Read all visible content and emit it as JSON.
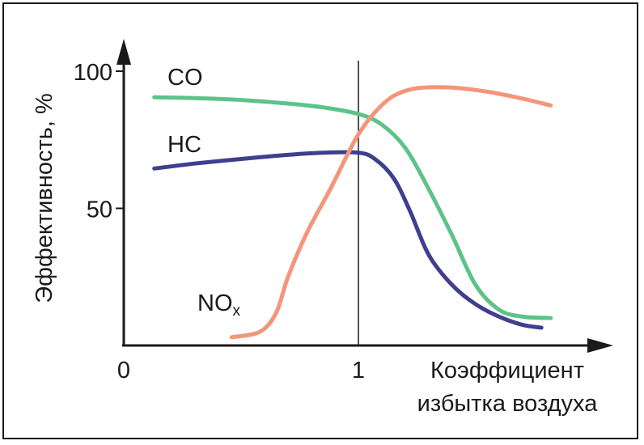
{
  "chart_data": {
    "type": "line",
    "title": "",
    "ylabel": "Эффективность, %",
    "xlabel_line1": "Коэффициент",
    "xlabel_line2": "избытка воздуха",
    "xlim": [
      0,
      2.05
    ],
    "ylim": [
      0,
      100
    ],
    "x_ticks": [
      {
        "value": 0,
        "label": "0"
      },
      {
        "value": 1,
        "label": "1"
      }
    ],
    "y_ticks": [
      {
        "value": 50,
        "label": "50"
      },
      {
        "value": 100,
        "label": "100"
      }
    ],
    "vertical_line_x": 1,
    "grid": false,
    "series": [
      {
        "name": "CO",
        "label_main": "CO",
        "label_sub": "",
        "color": "#5cc38a",
        "points": [
          [
            0.13,
            90.5
          ],
          [
            0.3,
            90.2
          ],
          [
            0.5,
            89.5
          ],
          [
            0.7,
            88.2
          ],
          [
            0.85,
            86.8
          ],
          [
            1.0,
            84.4
          ],
          [
            1.1,
            80.5
          ],
          [
            1.2,
            72
          ],
          [
            1.3,
            57
          ],
          [
            1.4,
            40
          ],
          [
            1.5,
            22
          ],
          [
            1.6,
            13
          ],
          [
            1.7,
            10.5
          ],
          [
            1.82,
            10
          ]
        ]
      },
      {
        "name": "HC",
        "label_main": "HC",
        "label_sub": "",
        "color": "#3f3f8f",
        "points": [
          [
            0.13,
            64.5
          ],
          [
            0.3,
            66.3
          ],
          [
            0.5,
            68
          ],
          [
            0.7,
            69.5
          ],
          [
            0.85,
            70.3
          ],
          [
            1.0,
            70.3
          ],
          [
            1.07,
            68
          ],
          [
            1.15,
            61
          ],
          [
            1.22,
            49
          ],
          [
            1.3,
            33
          ],
          [
            1.4,
            22
          ],
          [
            1.5,
            15
          ],
          [
            1.6,
            10.5
          ],
          [
            1.7,
            7.5
          ],
          [
            1.78,
            6.5
          ]
        ]
      },
      {
        "name": "NOx",
        "label_main": "NO",
        "label_sub": "x",
        "color": "#f4957a",
        "points": [
          [
            0.46,
            3
          ],
          [
            0.58,
            5
          ],
          [
            0.65,
            12
          ],
          [
            0.7,
            25
          ],
          [
            0.78,
            41
          ],
          [
            0.88,
            57
          ],
          [
            0.95,
            69
          ],
          [
            1.0,
            77
          ],
          [
            1.07,
            85
          ],
          [
            1.15,
            91
          ],
          [
            1.25,
            93.8
          ],
          [
            1.4,
            94
          ],
          [
            1.55,
            92.5
          ],
          [
            1.7,
            90
          ],
          [
            1.82,
            87.5
          ]
        ]
      }
    ]
  }
}
